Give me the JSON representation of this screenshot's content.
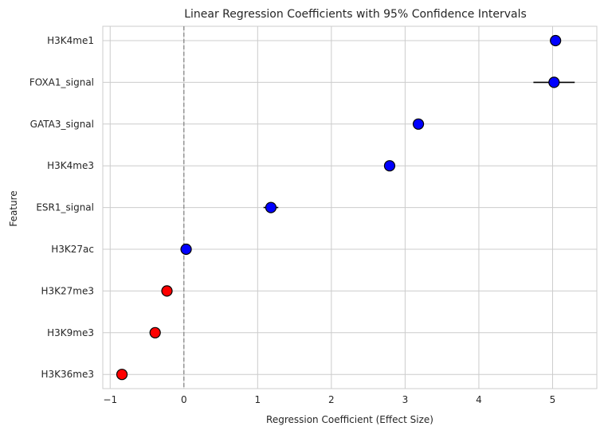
{
  "chart_data": {
    "type": "scatter",
    "title": "Linear Regression Coefficients with 95% Confidence Intervals",
    "xlabel": "Regression Coefficient (Effect Size)",
    "ylabel": "Feature",
    "xlim": [
      -1.1,
      5.6
    ],
    "xticks": [
      -1,
      0,
      1,
      2,
      3,
      4,
      5
    ],
    "xtick_labels": [
      "−1",
      "0",
      "1",
      "2",
      "3",
      "4",
      "5"
    ],
    "grid": true,
    "reference_line": {
      "x": 0,
      "style": "dashed",
      "color": "#808080"
    },
    "colors": {
      "positive": "#0000ff",
      "negative": "#ff0000",
      "error_bar": "#000000",
      "marker_edge": "#000000",
      "grid": "#cccccc"
    },
    "points": [
      {
        "feature": "H3K4me1",
        "value": 5.04,
        "ci": [
          5.0,
          5.08
        ]
      },
      {
        "feature": "FOXA1_signal",
        "value": 5.02,
        "ci": [
          4.74,
          5.3
        ]
      },
      {
        "feature": "GATA3_signal",
        "value": 3.18,
        "ci": [
          3.13,
          3.23
        ]
      },
      {
        "feature": "H3K4me3",
        "value": 2.79,
        "ci": [
          2.75,
          2.83
        ]
      },
      {
        "feature": "ESR1_signal",
        "value": 1.18,
        "ci": [
          1.08,
          1.28
        ]
      },
      {
        "feature": "H3K27ac",
        "value": 0.03,
        "ci": [
          -0.01,
          0.07
        ]
      },
      {
        "feature": "H3K27me3",
        "value": -0.23,
        "ci": [
          -0.27,
          -0.19
        ]
      },
      {
        "feature": "H3K9me3",
        "value": -0.39,
        "ci": [
          -0.43,
          -0.35
        ]
      },
      {
        "feature": "H3K36me3",
        "value": -0.84,
        "ci": [
          -0.88,
          -0.8
        ]
      }
    ]
  }
}
